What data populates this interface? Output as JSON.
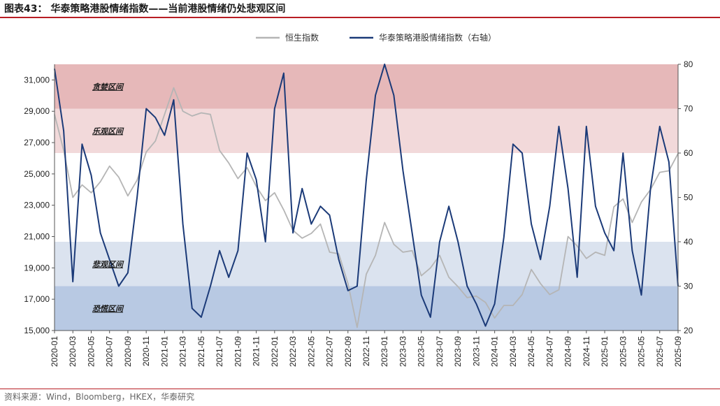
{
  "header": {
    "title": "图表43：  华泰策略港股情绪指数——当前港股情绪仍处悲观区间"
  },
  "footer": {
    "source": "资料来源：Wind，Bloomberg，HKEX，华泰研究"
  },
  "chart_data": {
    "type": "line",
    "title": "",
    "xlabel": "",
    "ylabel": "",
    "legend_position": "top-right",
    "grid": false,
    "colors": {
      "hsi": "#b5b5b5",
      "sentiment": "#1b3a78"
    },
    "x_ticks": [
      "2020-01",
      "2020-03",
      "2020-05",
      "2020-07",
      "2020-09",
      "2020-11",
      "2021-01",
      "2021-03",
      "2021-05",
      "2021-07",
      "2021-09",
      "2021-11",
      "2022-01",
      "2022-03",
      "2022-05",
      "2022-07",
      "2022-09",
      "2022-11",
      "2023-01",
      "2023-03",
      "2023-05",
      "2023-07",
      "2023-09",
      "2023-11",
      "2024-01",
      "2024-03",
      "2024-05",
      "2024-07",
      "2024-09",
      "2024-11",
      "2025-01",
      "2025-03",
      "2025-05",
      "2025-07",
      "2025-09"
    ],
    "y_left": {
      "min": 15000,
      "max": 32000,
      "ticks": [
        "15,000",
        "17,000",
        "19,000",
        "21,000",
        "23,000",
        "25,000",
        "27,000",
        "29,000",
        "31,000"
      ]
    },
    "y_right": {
      "min": 20,
      "max": 80,
      "ticks": [
        "20",
        "30",
        "40",
        "50",
        "60",
        "70",
        "80"
      ]
    },
    "zones": [
      {
        "name": "贪婪区间",
        "from": 70,
        "to": 80,
        "color": "#e6b8b9"
      },
      {
        "name": "乐观区间",
        "from": 60,
        "to": 70,
        "color": "#f2d9da"
      },
      {
        "name": "悲观区间",
        "from": 30,
        "to": 40,
        "color": "#dbe3ef"
      },
      {
        "name": "恐慌区间",
        "from": 20,
        "to": 30,
        "color": "#b8c9e3"
      }
    ],
    "series": [
      {
        "name": "恒生指数",
        "axis": "left",
        "x": [
          "2020-01",
          "2020-02",
          "2020-03",
          "2020-04",
          "2020-05",
          "2020-06",
          "2020-07",
          "2020-08",
          "2020-09",
          "2020-10",
          "2020-11",
          "2020-12",
          "2021-01",
          "2021-02",
          "2021-03",
          "2021-04",
          "2021-05",
          "2021-06",
          "2021-07",
          "2021-08",
          "2021-09",
          "2021-10",
          "2021-11",
          "2021-12",
          "2022-01",
          "2022-02",
          "2022-03",
          "2022-04",
          "2022-05",
          "2022-06",
          "2022-07",
          "2022-08",
          "2022-09",
          "2022-10",
          "2022-11",
          "2022-12",
          "2023-01",
          "2023-02",
          "2023-03",
          "2023-04",
          "2023-05",
          "2023-06",
          "2023-07",
          "2023-08",
          "2023-09",
          "2023-10",
          "2023-11",
          "2023-12",
          "2024-01",
          "2024-02",
          "2024-03",
          "2024-04",
          "2024-05",
          "2024-06",
          "2024-07",
          "2024-08",
          "2024-09",
          "2024-10",
          "2024-11",
          "2024-12",
          "2025-01",
          "2025-02",
          "2025-03",
          "2025-04",
          "2025-05",
          "2025-06",
          "2025-07",
          "2025-08",
          "2025-09"
        ],
        "values": [
          28800,
          26500,
          23500,
          24300,
          23800,
          24500,
          25500,
          24800,
          23600,
          24600,
          26400,
          27100,
          28800,
          30500,
          29000,
          28700,
          28900,
          28800,
          26500,
          25700,
          24700,
          25400,
          24200,
          23300,
          23800,
          22700,
          21400,
          20900,
          21200,
          21800,
          20000,
          19900,
          18000,
          15200,
          18600,
          19800,
          21900,
          20500,
          20000,
          20100,
          18500,
          19000,
          19800,
          18400,
          17800,
          17100,
          17200,
          16800,
          15800,
          16600,
          16600,
          17300,
          18900,
          18000,
          17300,
          17600,
          21000,
          20400,
          19600,
          20000,
          19800,
          22900,
          23400,
          21900,
          23200,
          24000,
          25100,
          25200,
          26300
        ]
      },
      {
        "name": "华泰策略港股情绪指数（右轴）",
        "axis": "right",
        "x": [
          "2020-01",
          "2020-02",
          "2020-03",
          "2020-04",
          "2020-05",
          "2020-06",
          "2020-07",
          "2020-08",
          "2020-09",
          "2020-10",
          "2020-11",
          "2020-12",
          "2021-01",
          "2021-02",
          "2021-03",
          "2021-04",
          "2021-05",
          "2021-06",
          "2021-07",
          "2021-08",
          "2021-09",
          "2021-10",
          "2021-11",
          "2021-12",
          "2022-01",
          "2022-02",
          "2022-03",
          "2022-04",
          "2022-05",
          "2022-06",
          "2022-07",
          "2022-08",
          "2022-09",
          "2022-10",
          "2022-11",
          "2022-12",
          "2023-01",
          "2023-02",
          "2023-03",
          "2023-04",
          "2023-05",
          "2023-06",
          "2023-07",
          "2023-08",
          "2023-09",
          "2023-10",
          "2023-11",
          "2023-12",
          "2024-01",
          "2024-02",
          "2024-03",
          "2024-04",
          "2024-05",
          "2024-06",
          "2024-07",
          "2024-08",
          "2024-09",
          "2024-10",
          "2024-11",
          "2024-12",
          "2025-01",
          "2025-02",
          "2025-03",
          "2025-04",
          "2025-05",
          "2025-06",
          "2025-07",
          "2025-08",
          "2025-09"
        ],
        "values": [
          79,
          65,
          31,
          62,
          55,
          42,
          36,
          30,
          33,
          50,
          70,
          68,
          64,
          72,
          44,
          25,
          23,
          30,
          38,
          32,
          38,
          60,
          54,
          40,
          70,
          78,
          42,
          52,
          44,
          48,
          46,
          36,
          29,
          30,
          54,
          73,
          80,
          73,
          56,
          42,
          28,
          23,
          40,
          48,
          40,
          30,
          26,
          21,
          26,
          41,
          62,
          60,
          44,
          36,
          48,
          66,
          52,
          32,
          66,
          48,
          42,
          38,
          60,
          38,
          28,
          52,
          66,
          58,
          30
        ]
      }
    ]
  }
}
